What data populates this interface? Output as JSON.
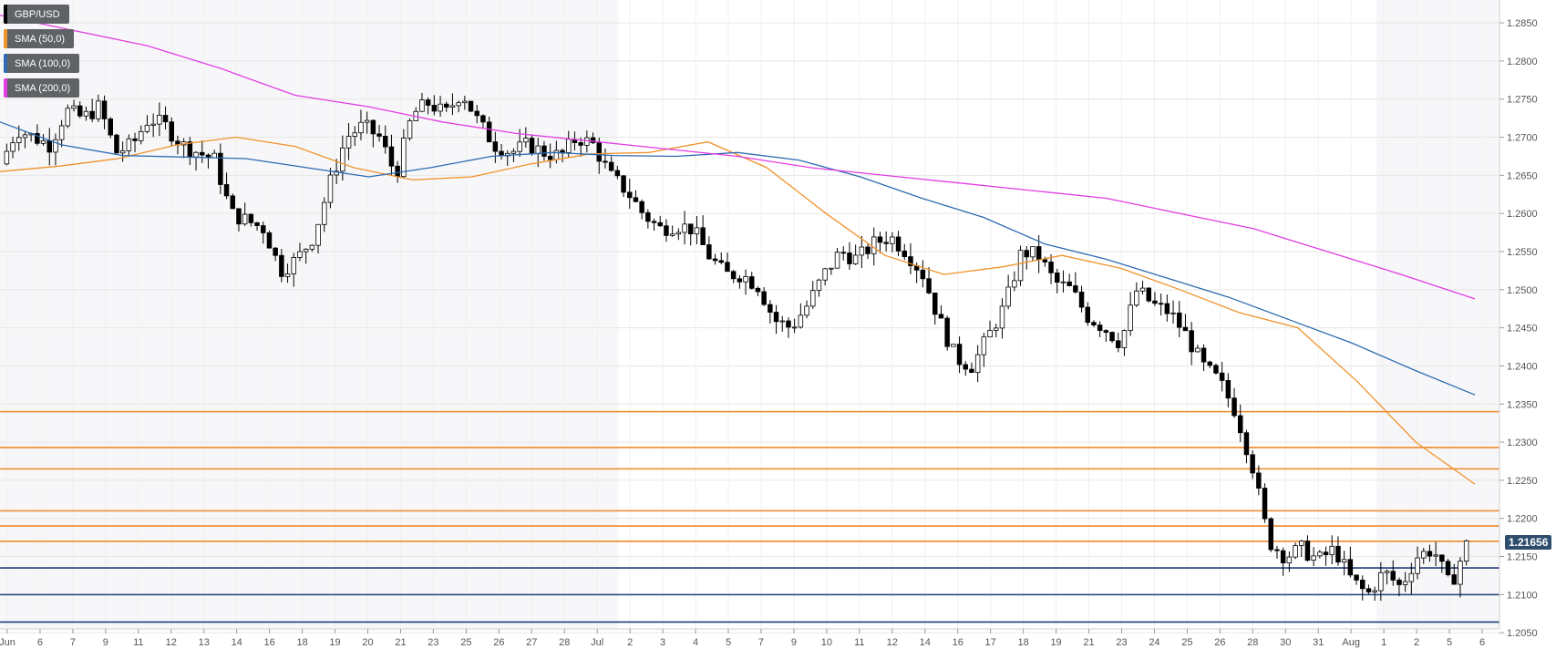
{
  "chart_data": {
    "type": "candlestick",
    "symbol": "GBP/USD",
    "legend": [
      {
        "label": "GBP/USD",
        "color": "#000000"
      },
      {
        "label": "SMA (50,0)",
        "color": "#f0922b"
      },
      {
        "label": "SMA (100,0)",
        "color": "#2e6bb0"
      },
      {
        "label": "SMA (200,0)",
        "color": "#e23ce3"
      }
    ],
    "current_price": "1.21656",
    "ylim": [
      1.2055,
      1.288
    ],
    "y_ticks": [
      "1.2050",
      "1.2100",
      "1.2150",
      "1.2200",
      "1.2250",
      "1.2300",
      "1.2350",
      "1.2400",
      "1.2450",
      "1.2500",
      "1.2550",
      "1.2600",
      "1.2650",
      "1.2700",
      "1.2750",
      "1.2800",
      "1.2850"
    ],
    "x_tick_labels": [
      "Jun",
      "6",
      "7",
      "9",
      "11",
      "12",
      "13",
      "14",
      "16",
      "18",
      "19",
      "20",
      "21",
      "23",
      "25",
      "26",
      "27",
      "28",
      "Jul",
      "2",
      "3",
      "4",
      "5",
      "7",
      "9",
      "10",
      "11",
      "12",
      "14",
      "16",
      "17",
      "18",
      "19",
      "21",
      "23",
      "24",
      "25",
      "26",
      "28",
      "30",
      "31",
      "Aug",
      "1",
      "2",
      "5",
      "6"
    ],
    "close_path": [
      1.2665,
      1.271,
      1.27,
      1.269,
      1.2735,
      1.2725,
      1.274,
      1.268,
      1.269,
      1.2725,
      1.2715,
      1.269,
      1.268,
      1.267,
      1.26,
      1.259,
      1.258,
      1.2525,
      1.254,
      1.257,
      1.264,
      1.27,
      1.2715,
      1.27,
      1.265,
      1.273,
      1.2745,
      1.273,
      1.276,
      1.272,
      1.269,
      1.268,
      1.269,
      1.268,
      1.2675,
      1.27,
      1.269,
      1.265,
      1.263,
      1.26,
      1.258,
      1.2585,
      1.258,
      1.2545,
      1.252,
      1.252,
      1.2505,
      1.246,
      1.245,
      1.248,
      1.252,
      1.255,
      1.254,
      1.256,
      1.257,
      1.255,
      1.252,
      1.246,
      1.241,
      1.24,
      1.244,
      1.248,
      1.255,
      1.2545,
      1.251,
      1.25,
      1.2465,
      1.245,
      1.243,
      1.25,
      1.248,
      1.247,
      1.244,
      1.24,
      1.238,
      1.234,
      1.227,
      1.217,
      1.215,
      1.216,
      1.2145,
      1.216,
      1.212,
      1.21,
      1.213,
      1.211,
      1.215,
      1.216,
      1.211,
      1.2165
    ],
    "sma_50": [
      1.2655,
      1.2662,
      1.2672,
      1.269,
      1.27,
      1.2688,
      1.266,
      1.2644,
      1.2648,
      1.2665,
      1.2678,
      1.268,
      1.2694,
      1.266,
      1.26,
      1.2545,
      1.252,
      1.253,
      1.2545,
      1.2528,
      1.25,
      1.247,
      1.245,
      1.238,
      1.23,
      1.2245
    ],
    "sma_100": [
      1.272,
      1.269,
      1.2676,
      1.2674,
      1.2672,
      1.266,
      1.2648,
      1.266,
      1.2675,
      1.268,
      1.2676,
      1.2675,
      1.268,
      1.267,
      1.2648,
      1.262,
      1.2595,
      1.256,
      1.254,
      1.2515,
      1.249,
      1.246,
      1.243,
      1.2395,
      1.2362
    ],
    "sma_200": [
      1.286,
      1.284,
      1.282,
      1.279,
      1.2755,
      1.274,
      1.272,
      1.2705,
      1.2695,
      1.2685,
      1.2675,
      1.266,
      1.265,
      1.264,
      1.263,
      1.262,
      1.26,
      1.258,
      1.255,
      1.252,
      1.2488
    ],
    "resistance_levels": [
      1.234,
      1.2293,
      1.2265,
      1.221,
      1.219,
      1.217
    ],
    "support_levels": [
      1.2135,
      1.21,
      1.2064
    ],
    "grid": true,
    "background_bands": true
  }
}
